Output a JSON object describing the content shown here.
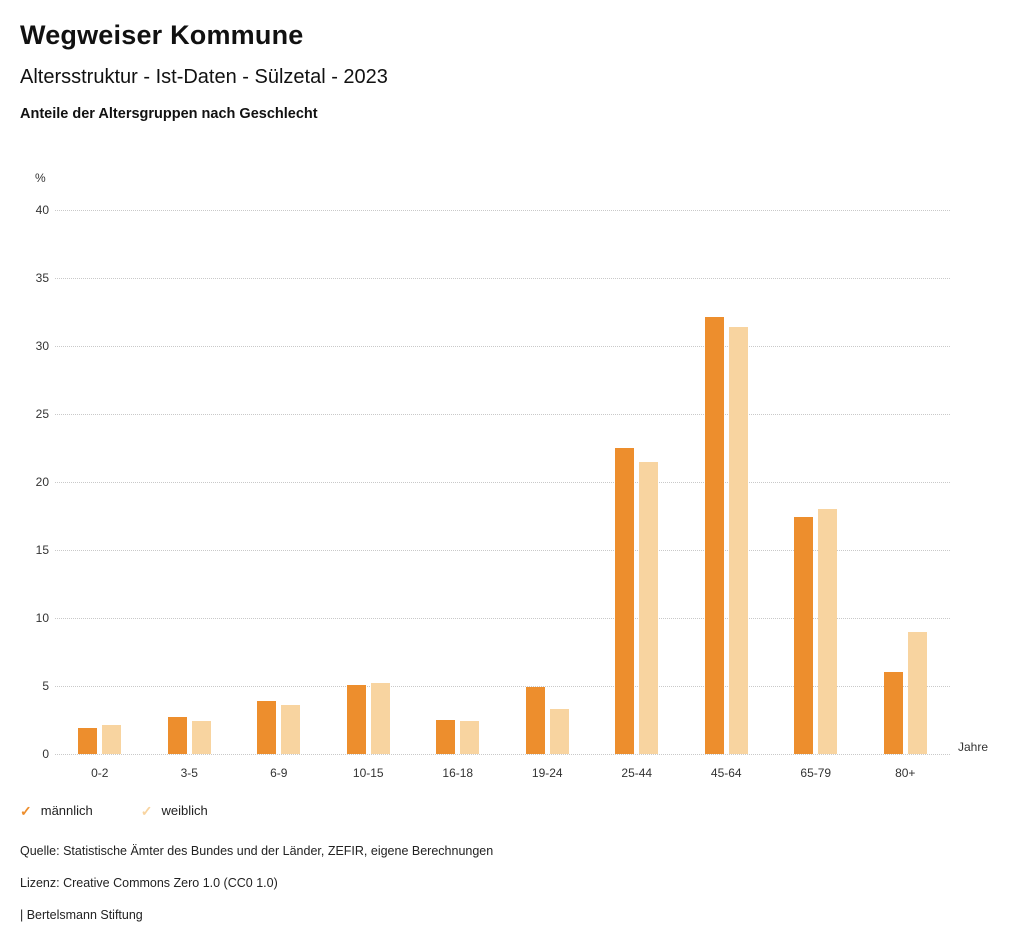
{
  "header": {
    "title": "Wegweiser Kommune",
    "subtitle": "Altersstruktur - Ist-Daten - Sülzetal - 2023",
    "chart_heading": "Anteile der Altersgruppen nach Geschlecht"
  },
  "chart_data": {
    "type": "bar",
    "title": "Anteile der Altersgruppen nach Geschlecht",
    "categories": [
      "0-2",
      "3-5",
      "6-9",
      "10-15",
      "16-18",
      "19-24",
      "25-44",
      "45-64",
      "65-79",
      "80+"
    ],
    "series": [
      {
        "name": "männlich",
        "color": "#ED8E2D",
        "values": [
          1.9,
          2.7,
          3.9,
          5.1,
          2.5,
          4.9,
          22.5,
          32.1,
          17.4,
          6.0
        ]
      },
      {
        "name": "weiblich",
        "color": "#F8D4A0",
        "values": [
          2.1,
          2.4,
          3.6,
          5.2,
          2.4,
          3.3,
          21.5,
          31.4,
          18.0,
          9.0
        ]
      }
    ],
    "ylabel": "%",
    "xlabel": "Jahre",
    "yticks": [
      0,
      5,
      10,
      15,
      20,
      25,
      30,
      35,
      40
    ],
    "ylim": [
      0,
      40
    ],
    "grid": "horizontal-dotted",
    "legend_position": "bottom-left"
  },
  "legend": {
    "items": [
      {
        "label": "männlich",
        "color": "#ED8E2D",
        "icon": "check-icon"
      },
      {
        "label": "weiblich",
        "color": "#F8D4A0",
        "icon": "check-icon"
      }
    ]
  },
  "footer": {
    "source": "Quelle: Statistische Ämter des Bundes und der Länder, ZEFIR, eigene Berechnungen",
    "license": "Lizenz: Creative Commons Zero 1.0 (CC0 1.0)",
    "attribution": "| Bertelsmann Stiftung"
  }
}
